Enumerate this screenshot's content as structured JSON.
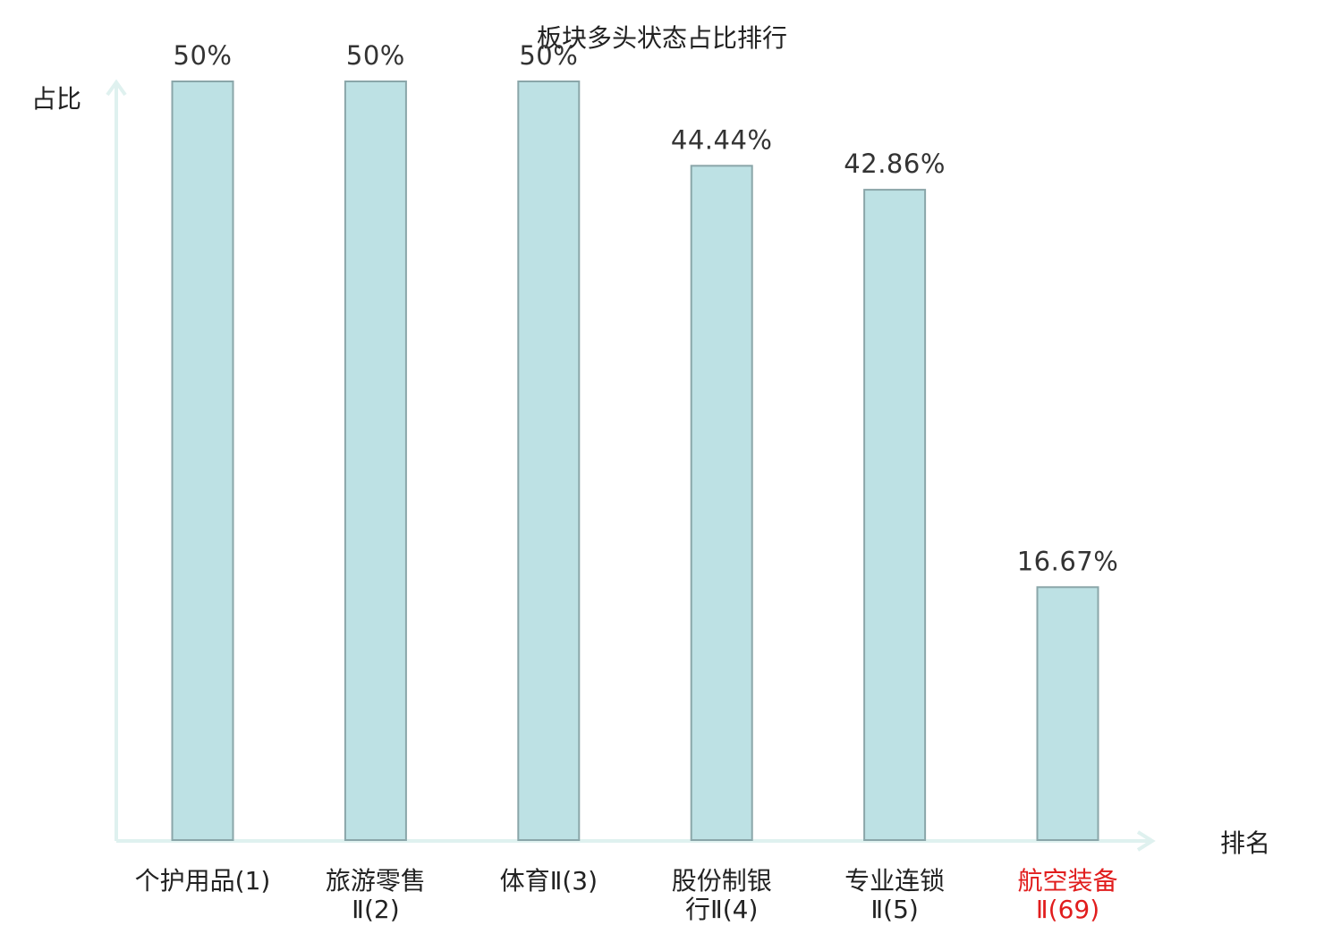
{
  "chart_data": {
    "type": "bar",
    "title": "板块多头状态占比排行",
    "ylabel": "占比",
    "xlabel": "排名",
    "ylim": [
      0,
      50
    ],
    "grid": false,
    "categories": [
      {
        "lines": [
          "个护用品(1)"
        ],
        "highlight": false
      },
      {
        "lines": [
          "旅游零售",
          "Ⅱ(2)"
        ],
        "highlight": false
      },
      {
        "lines": [
          "体育Ⅱ(3)"
        ],
        "highlight": false
      },
      {
        "lines": [
          "股份制银",
          "行Ⅱ(4)"
        ],
        "highlight": false
      },
      {
        "lines": [
          "专业连锁",
          "Ⅱ(5)"
        ],
        "highlight": false
      },
      {
        "lines": [
          "航空装备",
          "Ⅱ(69)"
        ],
        "highlight": true
      }
    ],
    "values": [
      50,
      50,
      50,
      44.44,
      42.86,
      16.67
    ],
    "value_labels": [
      "50%",
      "50%",
      "50%",
      "44.44%",
      "42.86%",
      "16.67%"
    ]
  },
  "colors": {
    "bar_fill": "#bde1e4",
    "bar_stroke": "#8aa6a9",
    "axis": "#dff1ef",
    "text": "#222222",
    "highlight": "#e11d1d"
  }
}
